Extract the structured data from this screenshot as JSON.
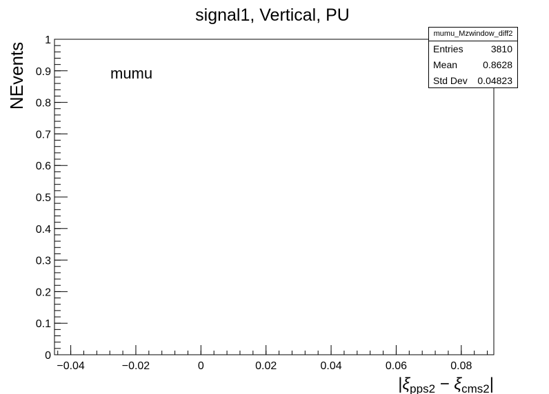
{
  "chart_data": {
    "type": "histogram",
    "title": "signal1, Vertical, PU",
    "xlabel": "|ξpps2 − ξcms2|",
    "ylabel": "NEvents",
    "annotation": "mumu",
    "xlim": [
      -0.045,
      0.09
    ],
    "ylim": [
      0,
      1
    ],
    "x_ticks": [
      {
        "value": -0.04,
        "label": "−0.04"
      },
      {
        "value": -0.02,
        "label": "−0.02"
      },
      {
        "value": 0,
        "label": "0"
      },
      {
        "value": 0.02,
        "label": "0.02"
      },
      {
        "value": 0.04,
        "label": "0.04"
      },
      {
        "value": 0.06,
        "label": "0.06"
      },
      {
        "value": 0.08,
        "label": "0.08"
      }
    ],
    "y_ticks": [
      {
        "value": 0,
        "label": "0"
      },
      {
        "value": 0.1,
        "label": "0.1"
      },
      {
        "value": 0.2,
        "label": "0.2"
      },
      {
        "value": 0.3,
        "label": "0.3"
      },
      {
        "value": 0.4,
        "label": "0.4"
      },
      {
        "value": 0.5,
        "label": "0.5"
      },
      {
        "value": 0.6,
        "label": "0.6"
      },
      {
        "value": 0.7,
        "label": "0.7"
      },
      {
        "value": 0.8,
        "label": "0.8"
      },
      {
        "value": 0.9,
        "label": "0.9"
      },
      {
        "value": 1,
        "label": "1"
      }
    ],
    "x_minor_step": 0.004,
    "y_minor_step": 0.02,
    "series": [],
    "stats": {
      "name": "mumu_Mzwindow_diff2",
      "rows": [
        {
          "label": "Entries",
          "value": "3810"
        },
        {
          "label": "Mean",
          "value": "0.8628"
        },
        {
          "label": "Std Dev",
          "value": "0.04823"
        }
      ]
    }
  }
}
